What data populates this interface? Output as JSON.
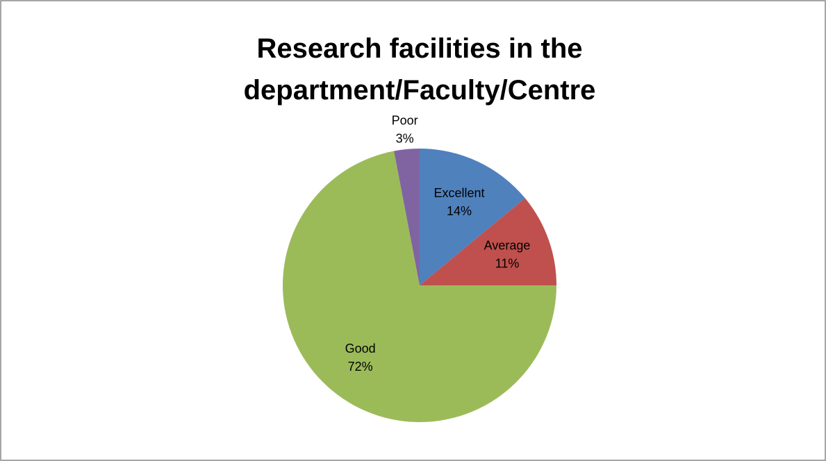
{
  "chart_data": {
    "type": "pie",
    "title": "Research facilities in the department/Faculty/Centre",
    "categories": [
      "Excellent",
      "Average",
      "Good",
      "Poor"
    ],
    "values": [
      14,
      11,
      72,
      3
    ],
    "value_labels": [
      "14%",
      "11%",
      "72%",
      "3%"
    ],
    "colors": [
      "#4f81bd",
      "#c0504d",
      "#9bbb59",
      "#8064a2"
    ]
  }
}
